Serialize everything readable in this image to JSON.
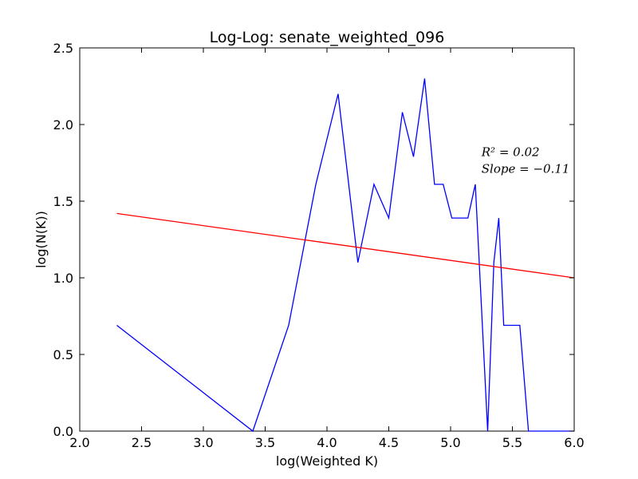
{
  "chart_data": {
    "type": "line",
    "title": "Log-Log: senate_weighted_096",
    "xlabel": "log(Weighted K)",
    "ylabel": "log(N(K))",
    "xlim": [
      2.0,
      6.0
    ],
    "ylim": [
      0.0,
      2.5
    ],
    "xticks": [
      "2.0",
      "2.5",
      "3.0",
      "3.5",
      "4.0",
      "4.5",
      "5.0",
      "5.5",
      "6.0"
    ],
    "yticks": [
      "0.0",
      "0.5",
      "1.0",
      "1.5",
      "2.0",
      "2.5"
    ],
    "grid": false,
    "series": [
      {
        "color": "#0000ff",
        "x": [
          2.3,
          3.4,
          3.69,
          3.91,
          4.09,
          4.25,
          4.38,
          4.5,
          4.61,
          4.7,
          4.79,
          4.87,
          4.94,
          5.01,
          5.14,
          5.2,
          5.3,
          5.35,
          5.39,
          5.43,
          5.56,
          5.63,
          6.0
        ],
        "y": [
          0.69,
          0.0,
          0.69,
          1.61,
          2.2,
          1.1,
          1.61,
          1.39,
          2.08,
          1.79,
          2.3,
          1.61,
          1.61,
          1.39,
          1.39,
          1.61,
          0.0,
          1.1,
          1.39,
          0.69,
          0.69,
          0.0,
          0.0
        ]
      },
      {
        "color": "#ff0000",
        "x": [
          2.3,
          6.0
        ],
        "y": [
          1.42,
          1.0
        ]
      }
    ],
    "annotations": [
      {
        "text": "R² = 0.02",
        "x": 5.25,
        "y": 1.82
      },
      {
        "text": "Slope = −0.11",
        "x": 5.25,
        "y": 1.71
      }
    ]
  }
}
